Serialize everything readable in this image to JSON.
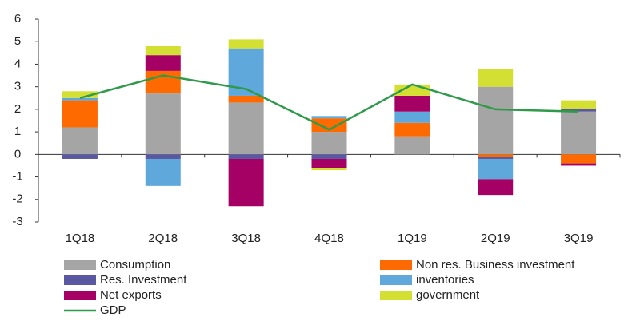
{
  "chart_data": {
    "type": "bar",
    "stacked": true,
    "categories": [
      "1Q18",
      "2Q18",
      "3Q18",
      "4Q18",
      "1Q19",
      "2Q19",
      "3Q19"
    ],
    "series": [
      {
        "name": "Consumption",
        "color": "#a5a5a5",
        "values": [
          1.2,
          2.7,
          2.3,
          1.0,
          0.8,
          3.0,
          1.9
        ]
      },
      {
        "name": "Non res. Business investment",
        "color": "#ff6a00",
        "values": [
          1.2,
          1.0,
          0.3,
          0.6,
          0.6,
          -0.1,
          -0.4
        ]
      },
      {
        "name": "Res. Investment",
        "color": "#5a58a0",
        "values": [
          -0.2,
          -0.2,
          -0.2,
          -0.2,
          0,
          -0.1,
          0.1
        ]
      },
      {
        "name": "inventories",
        "color": "#5fa8dc",
        "values": [
          0.1,
          -1.2,
          2.1,
          0.1,
          0.5,
          -0.9,
          0
        ]
      },
      {
        "name": "Net exports",
        "color": "#a50064",
        "values": [
          0,
          0.7,
          -2.1,
          -0.4,
          0.7,
          -0.7,
          -0.1
        ]
      },
      {
        "name": "government",
        "color": "#d4df33",
        "values": [
          0.3,
          0.4,
          0.4,
          -0.1,
          0.5,
          0.8,
          0.4
        ]
      },
      {
        "name": "GDP",
        "type": "line",
        "color": "#2e9a4a",
        "values": [
          2.5,
          3.5,
          2.9,
          1.1,
          3.1,
          2.0,
          1.9
        ]
      }
    ],
    "ylim": [
      -3,
      6
    ],
    "yticks": [
      -3,
      -2,
      -1,
      0,
      1,
      2,
      3,
      4,
      5,
      6
    ]
  }
}
